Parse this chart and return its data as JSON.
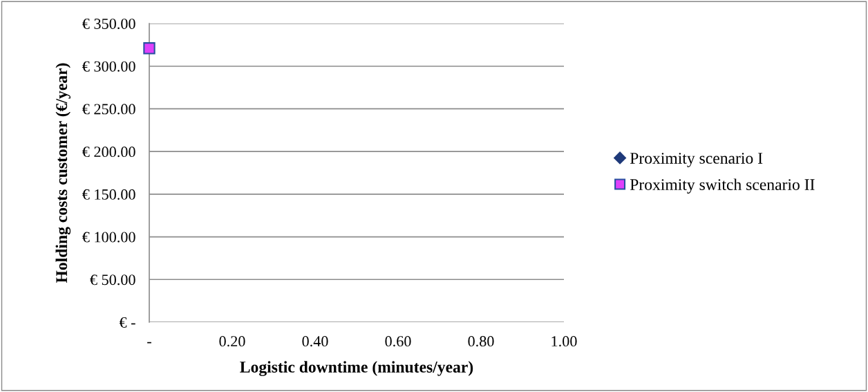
{
  "chart_data": {
    "type": "scatter",
    "xlabel": "Logistic downtime (minutes/year)",
    "ylabel": "Holding costs customer (€/year)",
    "x": [
      0
    ],
    "series": [
      {
        "name": "Proximity scenario I",
        "color": "#1f3a7a",
        "marker": "diamond",
        "values": [
          null
        ]
      },
      {
        "name": "Proximity switch scenario II",
        "color": "#e040fb",
        "marker": "square",
        "values": [
          321
        ]
      }
    ],
    "xlim": [
      0,
      1
    ],
    "xticks": [
      {
        "value": 0,
        "label": "-"
      },
      {
        "value": 0.2,
        "label": "0.20"
      },
      {
        "value": 0.4,
        "label": "0.40"
      },
      {
        "value": 0.6,
        "label": "0.60"
      },
      {
        "value": 0.8,
        "label": "0.80"
      },
      {
        "value": 1,
        "label": "1.00"
      }
    ],
    "ylim": [
      0,
      350
    ],
    "yticks": [
      {
        "value": 0,
        "label": "€ -"
      },
      {
        "value": 50,
        "label": "€ 50.00"
      },
      {
        "value": 100,
        "label": "€ 100.00"
      },
      {
        "value": 150,
        "label": "€ 150.00"
      },
      {
        "value": 200,
        "label": "€ 200.00"
      },
      {
        "value": 250,
        "label": "€ 250.00"
      },
      {
        "value": 300,
        "label": "€ 300.00"
      },
      {
        "value": 350,
        "label": "€ 350.00"
      }
    ],
    "grid": "y",
    "legend": "right"
  }
}
